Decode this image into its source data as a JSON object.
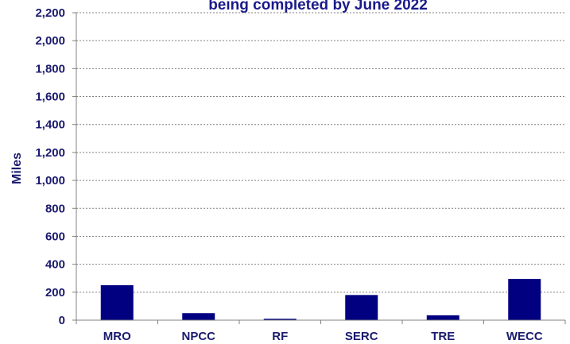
{
  "chart_data": {
    "type": "bar",
    "title": "being completed by June 2022",
    "xlabel": "",
    "ylabel": "Miles",
    "ylim": [
      0,
      2200
    ],
    "yticks": [
      0,
      200,
      400,
      600,
      800,
      1000,
      1200,
      1400,
      1600,
      1800,
      2000,
      2200
    ],
    "ytick_labels": [
      "0",
      "200",
      "400",
      "600",
      "800",
      "1,000",
      "1,200",
      "1,400",
      "1,600",
      "1,800",
      "2,000",
      "2,200"
    ],
    "categories": [
      "MRO",
      "NPCC",
      "RF",
      "SERC",
      "TRE",
      "WECC"
    ],
    "values": [
      250,
      50,
      10,
      180,
      35,
      295
    ],
    "grid": true,
    "legend": "none",
    "bar_color": "#000080"
  }
}
